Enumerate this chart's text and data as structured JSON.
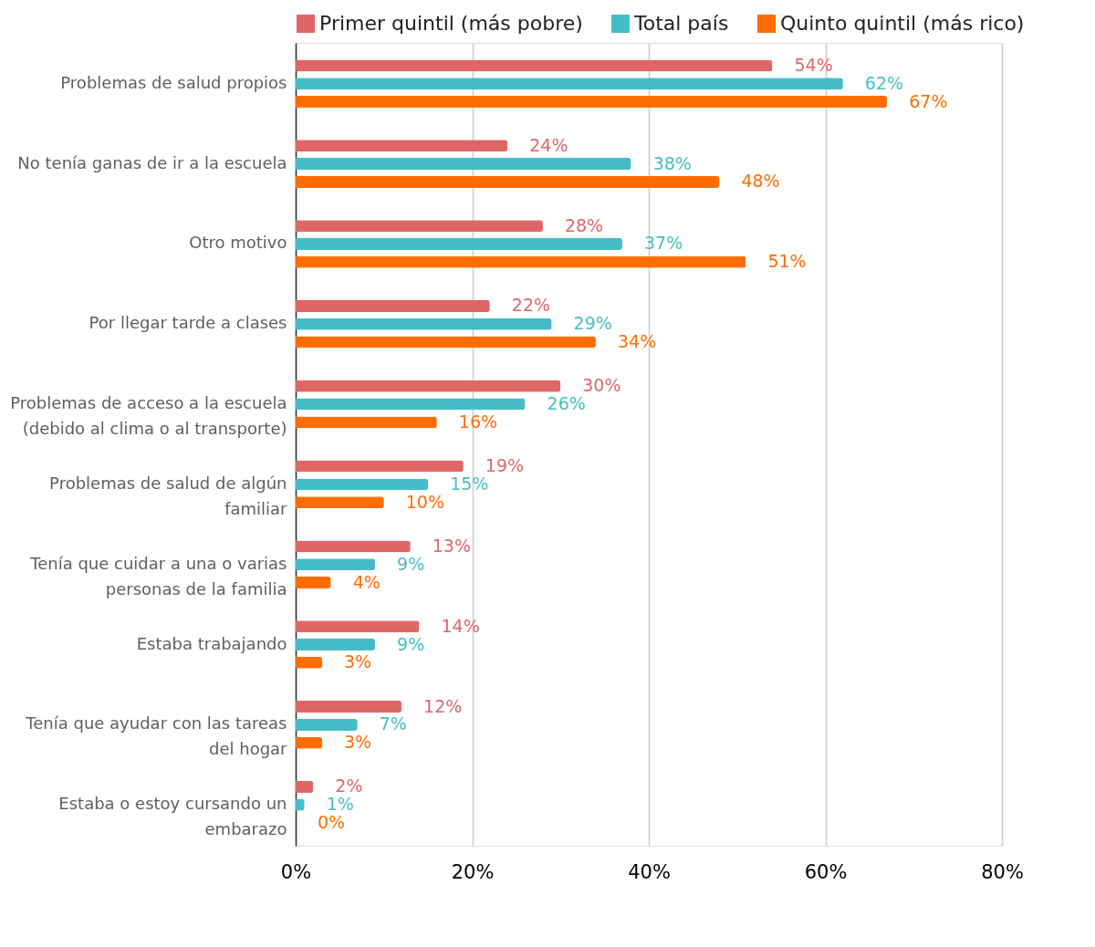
{
  "chart_data": {
    "type": "bar",
    "orientation": "horizontal",
    "categories": [
      "Problemas de salud propios",
      "No tenía ganas de ir a la escuela",
      "Otro motivo",
      "Por llegar tarde a clases",
      "Problemas de acceso a la escuela (debido al clima o al transporte)",
      "Problemas de salud de algún familiar",
      "Tenía que cuidar a una o varias personas de la familia",
      "Estaba trabajando",
      "Tenía que ayudar con las tareas del hogar",
      "Estaba o estoy cursando un embarazo"
    ],
    "series": [
      {
        "name": "Primer quintil (más pobre)",
        "color": "#e06666",
        "values": [
          54,
          24,
          28,
          22,
          30,
          19,
          13,
          14,
          12,
          2
        ],
        "value_labels": [
          "54%",
          "24%",
          "28%",
          "22%",
          "30%",
          "19%",
          "13%",
          "14%",
          "12%",
          "2%"
        ]
      },
      {
        "name": "Total país",
        "color": "#46bdc6",
        "values": [
          62,
          38,
          37,
          29,
          26,
          15,
          9,
          9,
          7,
          1
        ],
        "value_labels": [
          "62%",
          "38%",
          "37%",
          "29%",
          "26%",
          "15%",
          "9%",
          "9%",
          "7%",
          "1%"
        ]
      },
      {
        "name": "Quinto quintil (más rico)",
        "color": "#ff6d01",
        "values": [
          67,
          48,
          51,
          34,
          16,
          10,
          4,
          3,
          3,
          0
        ],
        "value_labels": [
          "67%",
          "48%",
          "51%",
          "34%",
          "16%",
          "10%",
          "4%",
          "3%",
          "3%",
          "0%"
        ]
      }
    ],
    "xlim": [
      0,
      80
    ],
    "xticks": [
      {
        "value": 0,
        "label": "0%"
      },
      {
        "value": 20,
        "label": "20%"
      },
      {
        "value": 40,
        "label": "40%"
      },
      {
        "value": 60,
        "label": "60%"
      },
      {
        "value": 80,
        "label": "80%"
      }
    ],
    "grid": "x",
    "legend": "top"
  }
}
